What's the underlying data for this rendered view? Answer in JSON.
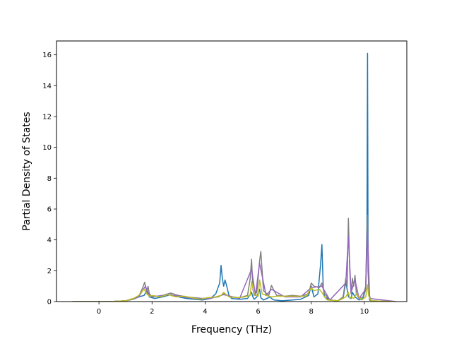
{
  "chart_data": {
    "type": "line",
    "title": "",
    "xlabel": "Frequency (THz)",
    "ylabel": "Partial Density of States",
    "xlim": [
      -1.6,
      11.6
    ],
    "ylim": [
      0,
      16.9
    ],
    "xticks": [
      0,
      2,
      4,
      6,
      8,
      10
    ],
    "yticks": [
      0,
      2,
      4,
      6,
      8,
      10,
      12,
      14,
      16
    ],
    "grid": false,
    "legend": "none",
    "series": [
      {
        "color": "#1f77b4",
        "x": [
          -1.0,
          0.4,
          1.0,
          1.3,
          1.5,
          1.7,
          1.8,
          1.9,
          2.1,
          2.4,
          2.7,
          3.0,
          3.3,
          3.6,
          3.9,
          4.2,
          4.4,
          4.55,
          4.6,
          4.65,
          4.7,
          4.75,
          4.8,
          4.9,
          5.0,
          5.3,
          5.6,
          5.75,
          5.8,
          5.85,
          5.95,
          6.05,
          6.1,
          6.2,
          6.45,
          6.5,
          6.6,
          6.9,
          7.3,
          7.6,
          7.9,
          8.0,
          8.1,
          8.25,
          8.35,
          8.4,
          8.45,
          8.5,
          8.7,
          9.0,
          9.2,
          9.3,
          9.4,
          9.5,
          9.55,
          9.65,
          9.8,
          9.95,
          10.05,
          10.1,
          10.12,
          10.14,
          10.16,
          10.2,
          10.3,
          11.2
        ],
        "y": [
          0,
          0,
          0.05,
          0.15,
          0.3,
          0.4,
          0.7,
          0.3,
          0.2,
          0.3,
          0.45,
          0.3,
          0.2,
          0.15,
          0.1,
          0.2,
          0.5,
          1.2,
          2.35,
          1.5,
          1.0,
          1.4,
          1.1,
          0.4,
          0.2,
          0.15,
          0.2,
          0.6,
          0.3,
          0.15,
          0.3,
          0.8,
          0.25,
          0.1,
          0.3,
          0.2,
          0.1,
          0.05,
          0.1,
          0.15,
          0.4,
          1.0,
          0.3,
          0.5,
          2.4,
          3.7,
          1.0,
          0.3,
          0.1,
          0.05,
          0.2,
          1.3,
          0.3,
          0.2,
          0.6,
          0.3,
          0.1,
          0.2,
          0.8,
          5.0,
          16.1,
          4.0,
          1.0,
          0.1,
          0,
          0
        ]
      },
      {
        "color": "#7f7f7f",
        "x": [
          -1.0,
          0.4,
          1.0,
          1.3,
          1.5,
          1.65,
          1.72,
          1.8,
          1.85,
          1.9,
          2.0,
          2.2,
          2.4,
          2.6,
          2.7,
          3.0,
          3.3,
          3.6,
          3.9,
          4.2,
          4.5,
          4.7,
          5.0,
          5.3,
          5.6,
          5.7,
          5.75,
          5.8,
          5.85,
          5.95,
          6.05,
          6.1,
          6.2,
          6.4,
          6.5,
          6.6,
          6.7,
          7.0,
          7.3,
          7.6,
          7.9,
          8.0,
          8.1,
          8.3,
          8.4,
          8.5,
          8.7,
          9.0,
          9.2,
          9.3,
          9.35,
          9.4,
          9.45,
          9.5,
          9.55,
          9.6,
          9.65,
          9.7,
          9.8,
          9.95,
          10.05,
          10.12,
          10.14,
          10.18,
          10.25,
          11.2
        ],
        "y": [
          0,
          0,
          0.05,
          0.15,
          0.35,
          0.9,
          1.25,
          0.6,
          1.0,
          0.5,
          0.3,
          0.35,
          0.4,
          0.5,
          0.55,
          0.4,
          0.3,
          0.25,
          0.2,
          0.25,
          0.3,
          0.5,
          0.3,
          0.25,
          0.4,
          1.5,
          2.75,
          0.8,
          0.4,
          0.6,
          2.6,
          3.25,
          0.7,
          0.4,
          1.05,
          0.7,
          0.4,
          0.35,
          0.4,
          0.35,
          0.5,
          1.2,
          1.0,
          0.9,
          1.2,
          0.5,
          0.1,
          0.05,
          0.3,
          1.5,
          1.0,
          5.4,
          2.0,
          0.5,
          1.5,
          1.0,
          1.7,
          0.5,
          0.2,
          0.3,
          1.0,
          5.6,
          2.0,
          0.5,
          0.05,
          0
        ]
      },
      {
        "color": "#9467bd",
        "x": [
          -1.0,
          0.4,
          1.0,
          1.5,
          1.75,
          1.9,
          2.2,
          2.6,
          3.0,
          3.6,
          4.2,
          4.7,
          5.3,
          5.75,
          5.9,
          6.05,
          6.3,
          6.5,
          7.0,
          7.6,
          8.0,
          8.4,
          8.7,
          9.3,
          9.4,
          9.5,
          9.65,
          9.8,
          10.05,
          10.12,
          10.2,
          11.2
        ],
        "y": [
          0,
          0,
          0.05,
          0.3,
          1.0,
          0.4,
          0.35,
          0.45,
          0.35,
          0.2,
          0.2,
          0.45,
          0.2,
          2.1,
          0.4,
          2.5,
          0.4,
          0.8,
          0.3,
          0.3,
          0.9,
          1.0,
          0.1,
          1.2,
          4.2,
          0.6,
          1.4,
          0.2,
          0.8,
          4.6,
          0.2,
          0
        ]
      },
      {
        "color": "#bcbd22",
        "x": [
          -1.0,
          0.4,
          1.0,
          1.3,
          1.5,
          1.7,
          1.8,
          1.9,
          2.0,
          2.3,
          2.6,
          2.9,
          3.2,
          3.5,
          3.8,
          4.1,
          4.4,
          4.6,
          4.7,
          4.9,
          5.2,
          5.5,
          5.7,
          5.75,
          5.85,
          6.0,
          6.05,
          6.15,
          6.3,
          6.5,
          6.7,
          7.0,
          7.4,
          7.8,
          8.0,
          8.1,
          8.3,
          8.4,
          8.5,
          8.6,
          9.0,
          9.3,
          9.4,
          9.45,
          9.5,
          9.6,
          9.7,
          9.9,
          10.05,
          10.12,
          10.16,
          10.25,
          11.2
        ],
        "y": [
          0,
          0,
          0.05,
          0.2,
          0.4,
          0.8,
          0.5,
          0.35,
          0.4,
          0.3,
          0.45,
          0.3,
          0.35,
          0.25,
          0.15,
          0.25,
          0.3,
          0.4,
          0.6,
          0.3,
          0.25,
          0.3,
          0.4,
          1.3,
          0.5,
          0.35,
          1.4,
          0.5,
          0.4,
          0.3,
          0.35,
          0.35,
          0.35,
          0.35,
          0.9,
          0.7,
          0.8,
          0.6,
          0.3,
          0.1,
          0.05,
          0.3,
          0.6,
          0.2,
          0.3,
          0.2,
          0.5,
          0.1,
          0.3,
          1.1,
          0.4,
          0.05,
          0
        ]
      }
    ]
  }
}
